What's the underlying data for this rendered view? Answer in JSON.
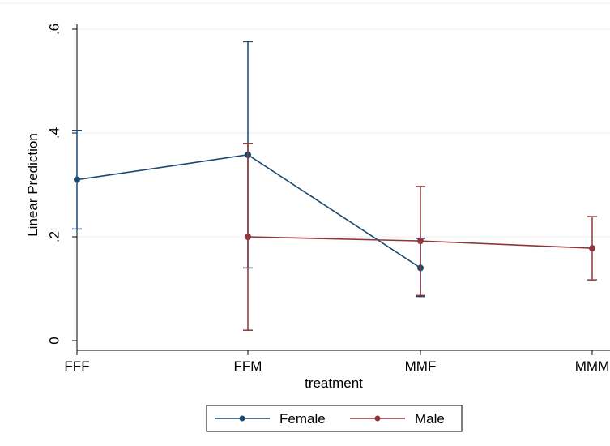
{
  "chart_data": {
    "type": "line",
    "title": "",
    "xlabel": "treatment",
    "ylabel": "Linear Prediction",
    "categories": [
      "FFF",
      "FFM",
      "MMF",
      "MMM"
    ],
    "y_ticks": [
      0,
      0.2,
      0.4,
      0.6
    ],
    "y_tick_labels": [
      "0",
      ".2",
      ".4",
      ".6"
    ],
    "ylim": [
      -0.02,
      0.62
    ],
    "grid": true,
    "legend_position": "bottom",
    "series": [
      {
        "name": "Female",
        "color": "#1a476f",
        "points": [
          {
            "x": "FFF",
            "y": 0.31,
            "ci_low": 0.215,
            "ci_high": 0.405
          },
          {
            "x": "FFM",
            "y": 0.358,
            "ci_low": 0.14,
            "ci_high": 0.576
          },
          {
            "x": "MMF",
            "y": 0.14,
            "ci_low": 0.085,
            "ci_high": 0.197
          }
        ]
      },
      {
        "name": "Male",
        "color": "#90353b",
        "points": [
          {
            "x": "FFM",
            "y": 0.2,
            "ci_low": 0.02,
            "ci_high": 0.38
          },
          {
            "x": "MMF",
            "y": 0.192,
            "ci_low": 0.087,
            "ci_high": 0.297
          },
          {
            "x": "MMM",
            "y": 0.178,
            "ci_low": 0.117,
            "ci_high": 0.239
          }
        ]
      }
    ]
  }
}
